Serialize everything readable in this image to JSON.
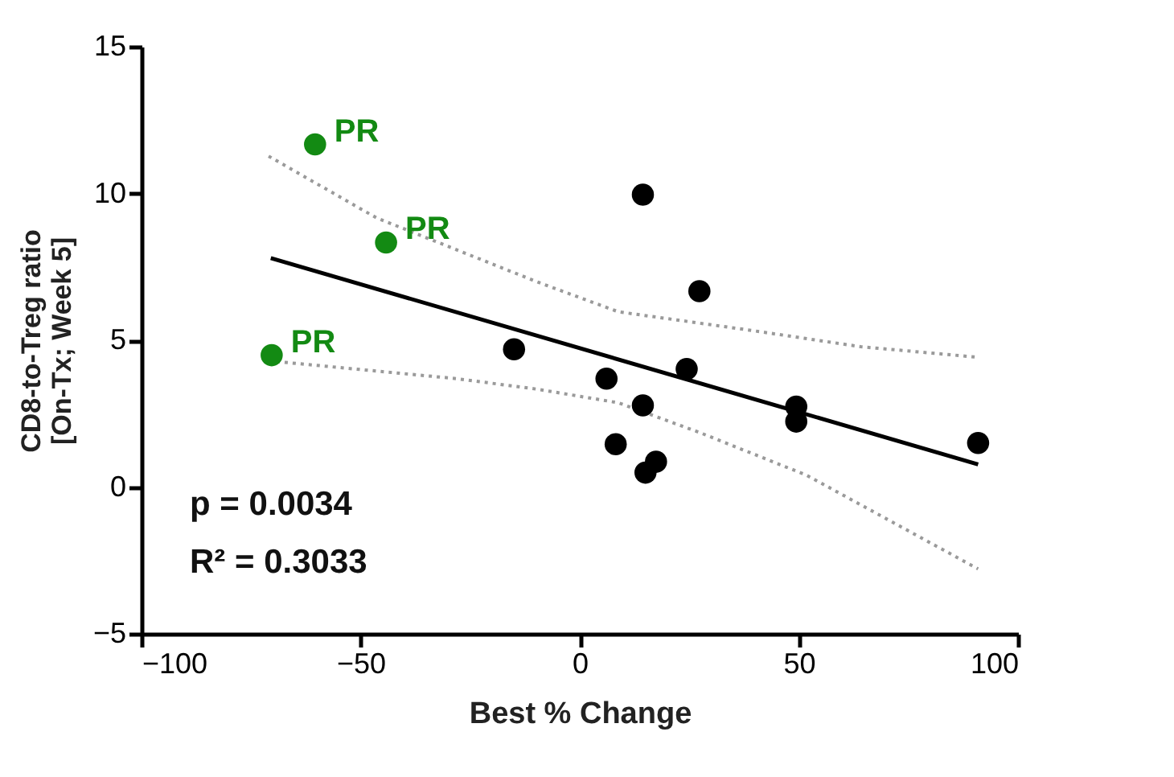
{
  "chart_data": {
    "type": "scatter",
    "xlabel": "Best % Change",
    "ylabel": "CD8-to-Treg ratio\n[On-Tx; Week 5]",
    "xlim": [
      -100,
      100
    ],
    "xticks": [
      -100,
      -50,
      0,
      50,
      100
    ],
    "ylim": [
      -5,
      15
    ],
    "yticks": [
      -5,
      0,
      5,
      10,
      15
    ],
    "grid": false,
    "series": [
      {
        "color": "#138a13",
        "marker": "circle",
        "x": [
          -60.4,
          -44.2,
          -70.3
        ],
        "values": [
          11.67,
          8.33,
          4.49
        ]
      },
      {
        "color": "#000000",
        "marker": "circle",
        "x": [
          -15.0,
          6.1,
          8.2,
          14.4,
          14.4,
          15.0,
          17.4,
          24.4,
          27.3,
          49.4,
          49.4,
          90.9
        ],
        "values": [
          4.69,
          3.69,
          1.46,
          9.96,
          2.78,
          0.49,
          0.86,
          4.02,
          6.67,
          2.74,
          2.23,
          1.5
        ]
      },
      {
        "type": "line",
        "color": "#000000",
        "line_style": "solid",
        "x": [
          -70.5,
          90.9
        ],
        "values": [
          7.8,
          0.77
        ]
      },
      {
        "type": "line",
        "color": "#9a9a9a",
        "line_style": "dotted",
        "x": [
          -71,
          -46.4,
          -9.6,
          8.8,
          39.4,
          64.1,
          90.9
        ],
        "values": [
          11.27,
          9.17,
          6.98,
          5.97,
          5.33,
          4.78,
          4.42
        ]
      },
      {
        "type": "line",
        "color": "#9a9a9a",
        "line_style": "dotted",
        "x": [
          -71,
          -28,
          -9.6,
          8.8,
          27.3,
          51.8,
          90.9
        ],
        "values": [
          4.3,
          3.69,
          3.33,
          2.87,
          1.86,
          0.4,
          -2.79
        ]
      }
    ],
    "annotations": [
      {
        "text": "PR",
        "x": -60.4,
        "y": 11.67
      },
      {
        "text": "PR",
        "x": -44.2,
        "y": 8.33
      },
      {
        "text": "PR",
        "x": -70.3,
        "y": 4.49
      },
      "p = 0.0034",
      "R² = 0.3033"
    ]
  }
}
